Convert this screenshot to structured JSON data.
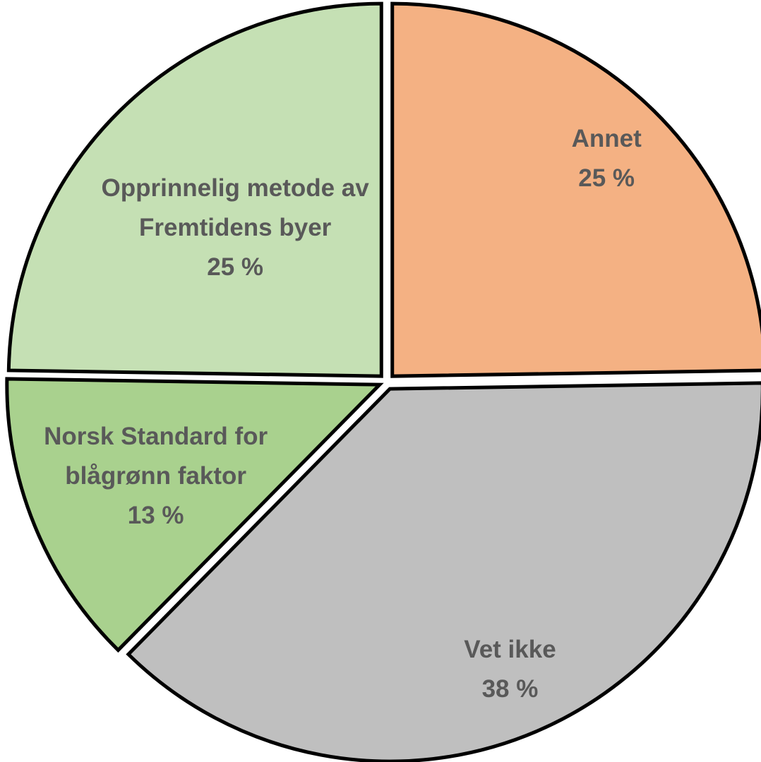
{
  "chart_data": {
    "type": "pie",
    "categories": [
      "Annet",
      "Vet ikke",
      "Norsk Standard for blågrønn faktor",
      "Opprinnelig metode av Fremtidens byer"
    ],
    "values": [
      25,
      38,
      13,
      25
    ],
    "value_labels": [
      "25 %",
      "38 %",
      "13 %",
      "25 %"
    ],
    "colors": [
      "#F4B183",
      "#BFBFBF",
      "#A9D18E",
      "#C5E0B4"
    ]
  }
}
